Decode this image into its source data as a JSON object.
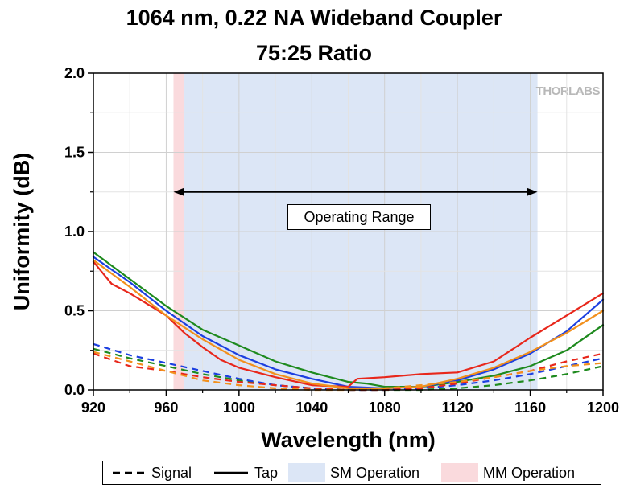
{
  "title_line1": "1064 nm, 0.22 NA Wideband Coupler",
  "title_line2": "75:25 Ratio",
  "watermark": "THORLABS",
  "annotation": "Operating Range",
  "chart_data": {
    "type": "line",
    "title": "1064 nm, 0.22 NA Wideband Coupler 75:25 Ratio",
    "xlabel": "Wavelength (nm)",
    "ylabel": "Uniformity (dB)",
    "xlim": [
      920,
      1200
    ],
    "ylim": [
      0,
      2.0
    ],
    "xticks": [
      "920",
      "960",
      "1000",
      "1040",
      "1080",
      "1120",
      "1160",
      "1200"
    ],
    "yticks": [
      "0.0",
      "0.5",
      "1.0",
      "1.5",
      "2.0"
    ],
    "grid": true,
    "legend_position": "bottom",
    "legend": [
      "Signal",
      "Tap",
      "SM Operation",
      "MM Operation"
    ],
    "regions": [
      {
        "name": "MM Operation",
        "x": [
          964,
          970
        ],
        "color": "#fadadd"
      },
      {
        "name": "SM Operation",
        "x": [
          970,
          1164
        ],
        "color": "#dce6f6"
      }
    ],
    "operating_range": [
      964,
      1164
    ],
    "series": [
      {
        "line": "Tap",
        "color": "#1e8a1e",
        "x": [
          920,
          940,
          960,
          980,
          1000,
          1020,
          1040,
          1060,
          1070,
          1080,
          1100,
          1120,
          1140,
          1160,
          1180,
          1200
        ],
        "values": [
          0.87,
          0.7,
          0.53,
          0.38,
          0.28,
          0.18,
          0.11,
          0.05,
          0.04,
          0.02,
          0.02,
          0.05,
          0.09,
          0.15,
          0.25,
          0.41
        ]
      },
      {
        "line": "Tap",
        "color": "#1c3fe0",
        "x": [
          920,
          940,
          960,
          980,
          1000,
          1020,
          1040,
          1060,
          1080,
          1100,
          1120,
          1140,
          1160,
          1180,
          1200
        ],
        "values": [
          0.84,
          0.68,
          0.5,
          0.34,
          0.22,
          0.13,
          0.07,
          0.02,
          0.01,
          0.02,
          0.06,
          0.13,
          0.23,
          0.37,
          0.57
        ]
      },
      {
        "line": "Tap",
        "color": "#e8271b",
        "x": [
          920,
          930,
          940,
          960,
          970,
          980,
          990,
          1000,
          1020,
          1040,
          1060,
          1065,
          1080,
          1100,
          1120,
          1140,
          1160,
          1180,
          1200
        ],
        "values": [
          0.81,
          0.67,
          0.61,
          0.47,
          0.36,
          0.27,
          0.19,
          0.14,
          0.08,
          0.03,
          0.02,
          0.07,
          0.08,
          0.1,
          0.11,
          0.18,
          0.33,
          0.47,
          0.61
        ]
      },
      {
        "line": "Tap",
        "color": "#f2901c",
        "x": [
          920,
          940,
          960,
          980,
          1000,
          1020,
          1040,
          1060,
          1080,
          1100,
          1120,
          1140,
          1160,
          1180,
          1200
        ],
        "values": [
          0.82,
          0.65,
          0.47,
          0.32,
          0.19,
          0.1,
          0.04,
          0.01,
          0.01,
          0.02,
          0.07,
          0.14,
          0.24,
          0.36,
          0.5
        ]
      },
      {
        "line": "Signal",
        "color": "#1e8a1e",
        "x": [
          920,
          940,
          960,
          980,
          1000,
          1020,
          1040,
          1060,
          1080,
          1100,
          1120,
          1140,
          1160,
          1180,
          1200
        ],
        "values": [
          0.26,
          0.2,
          0.15,
          0.1,
          0.06,
          0.03,
          0.01,
          0.0,
          0.0,
          0.0,
          0.01,
          0.03,
          0.06,
          0.1,
          0.15
        ]
      },
      {
        "line": "Signal",
        "color": "#1c3fe0",
        "x": [
          920,
          940,
          960,
          980,
          1000,
          1020,
          1040,
          1060,
          1080,
          1100,
          1120,
          1140,
          1160,
          1180,
          1200
        ],
        "values": [
          0.29,
          0.22,
          0.17,
          0.12,
          0.07,
          0.03,
          0.01,
          0.0,
          0.0,
          0.01,
          0.03,
          0.06,
          0.1,
          0.15,
          0.2
        ]
      },
      {
        "line": "Signal",
        "color": "#e8271b",
        "x": [
          920,
          940,
          960,
          980,
          1000,
          1020,
          1040,
          1060,
          1080,
          1100,
          1120,
          1140,
          1160,
          1180,
          1200
        ],
        "values": [
          0.23,
          0.15,
          0.12,
          0.08,
          0.05,
          0.03,
          0.01,
          0.0,
          0.0,
          0.01,
          0.04,
          0.08,
          0.12,
          0.18,
          0.23
        ]
      },
      {
        "line": "Signal",
        "color": "#f2901c",
        "x": [
          920,
          940,
          960,
          980,
          1000,
          1020,
          1040,
          1060,
          1080,
          1100,
          1120,
          1140,
          1160,
          1180,
          1200
        ],
        "values": [
          0.24,
          0.18,
          0.12,
          0.06,
          0.03,
          0.01,
          0.0,
          0.0,
          0.01,
          0.03,
          0.05,
          0.08,
          0.12,
          0.15,
          0.17
        ]
      }
    ]
  }
}
